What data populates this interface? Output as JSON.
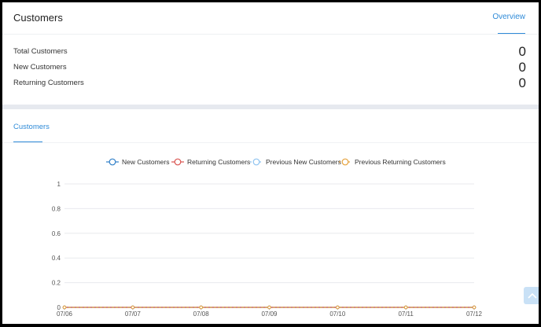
{
  "summary_card": {
    "title": "Customers",
    "tab": "Overview",
    "stats": [
      {
        "label": "Total Customers",
        "value": "0"
      },
      {
        "label": "New Customers",
        "value": "0"
      },
      {
        "label": "Returning Customers",
        "value": "0"
      }
    ]
  },
  "chart_card": {
    "tab": "Customers"
  },
  "colors": {
    "accent": "#2f8bd8",
    "new": "#2f7fc8",
    "returning": "#d9534f",
    "prev_new": "#8ec3f0",
    "prev_returning": "#e6a23c"
  },
  "chart_data": {
    "type": "line",
    "x": [
      "07/06",
      "07/07",
      "07/08",
      "07/09",
      "07/10",
      "07/11",
      "07/12"
    ],
    "y_ticks": [
      "0",
      "0.2",
      "0.4",
      "0.6",
      "0.8",
      "1"
    ],
    "ylim": [
      0,
      1
    ],
    "legend_position": "top-center",
    "grid": true,
    "series": [
      {
        "name": "New Customers",
        "values": [
          0,
          0,
          0,
          0,
          0,
          0,
          0
        ],
        "icon": "circle-line-icon"
      },
      {
        "name": "Returning Customers",
        "values": [
          0,
          0,
          0,
          0,
          0,
          0,
          0
        ],
        "icon": "circle-line-icon"
      },
      {
        "name": "Previous New Customers",
        "values": [
          0,
          0,
          0,
          0,
          0,
          0,
          0
        ],
        "icon": "circle-dashed-line-icon"
      },
      {
        "name": "Previous Returning Customers",
        "values": [
          0,
          0,
          0,
          0,
          0,
          0,
          0
        ],
        "icon": "circle-dashed-line-icon"
      }
    ]
  },
  "scroll_top_icon": "arrow-up-icon"
}
